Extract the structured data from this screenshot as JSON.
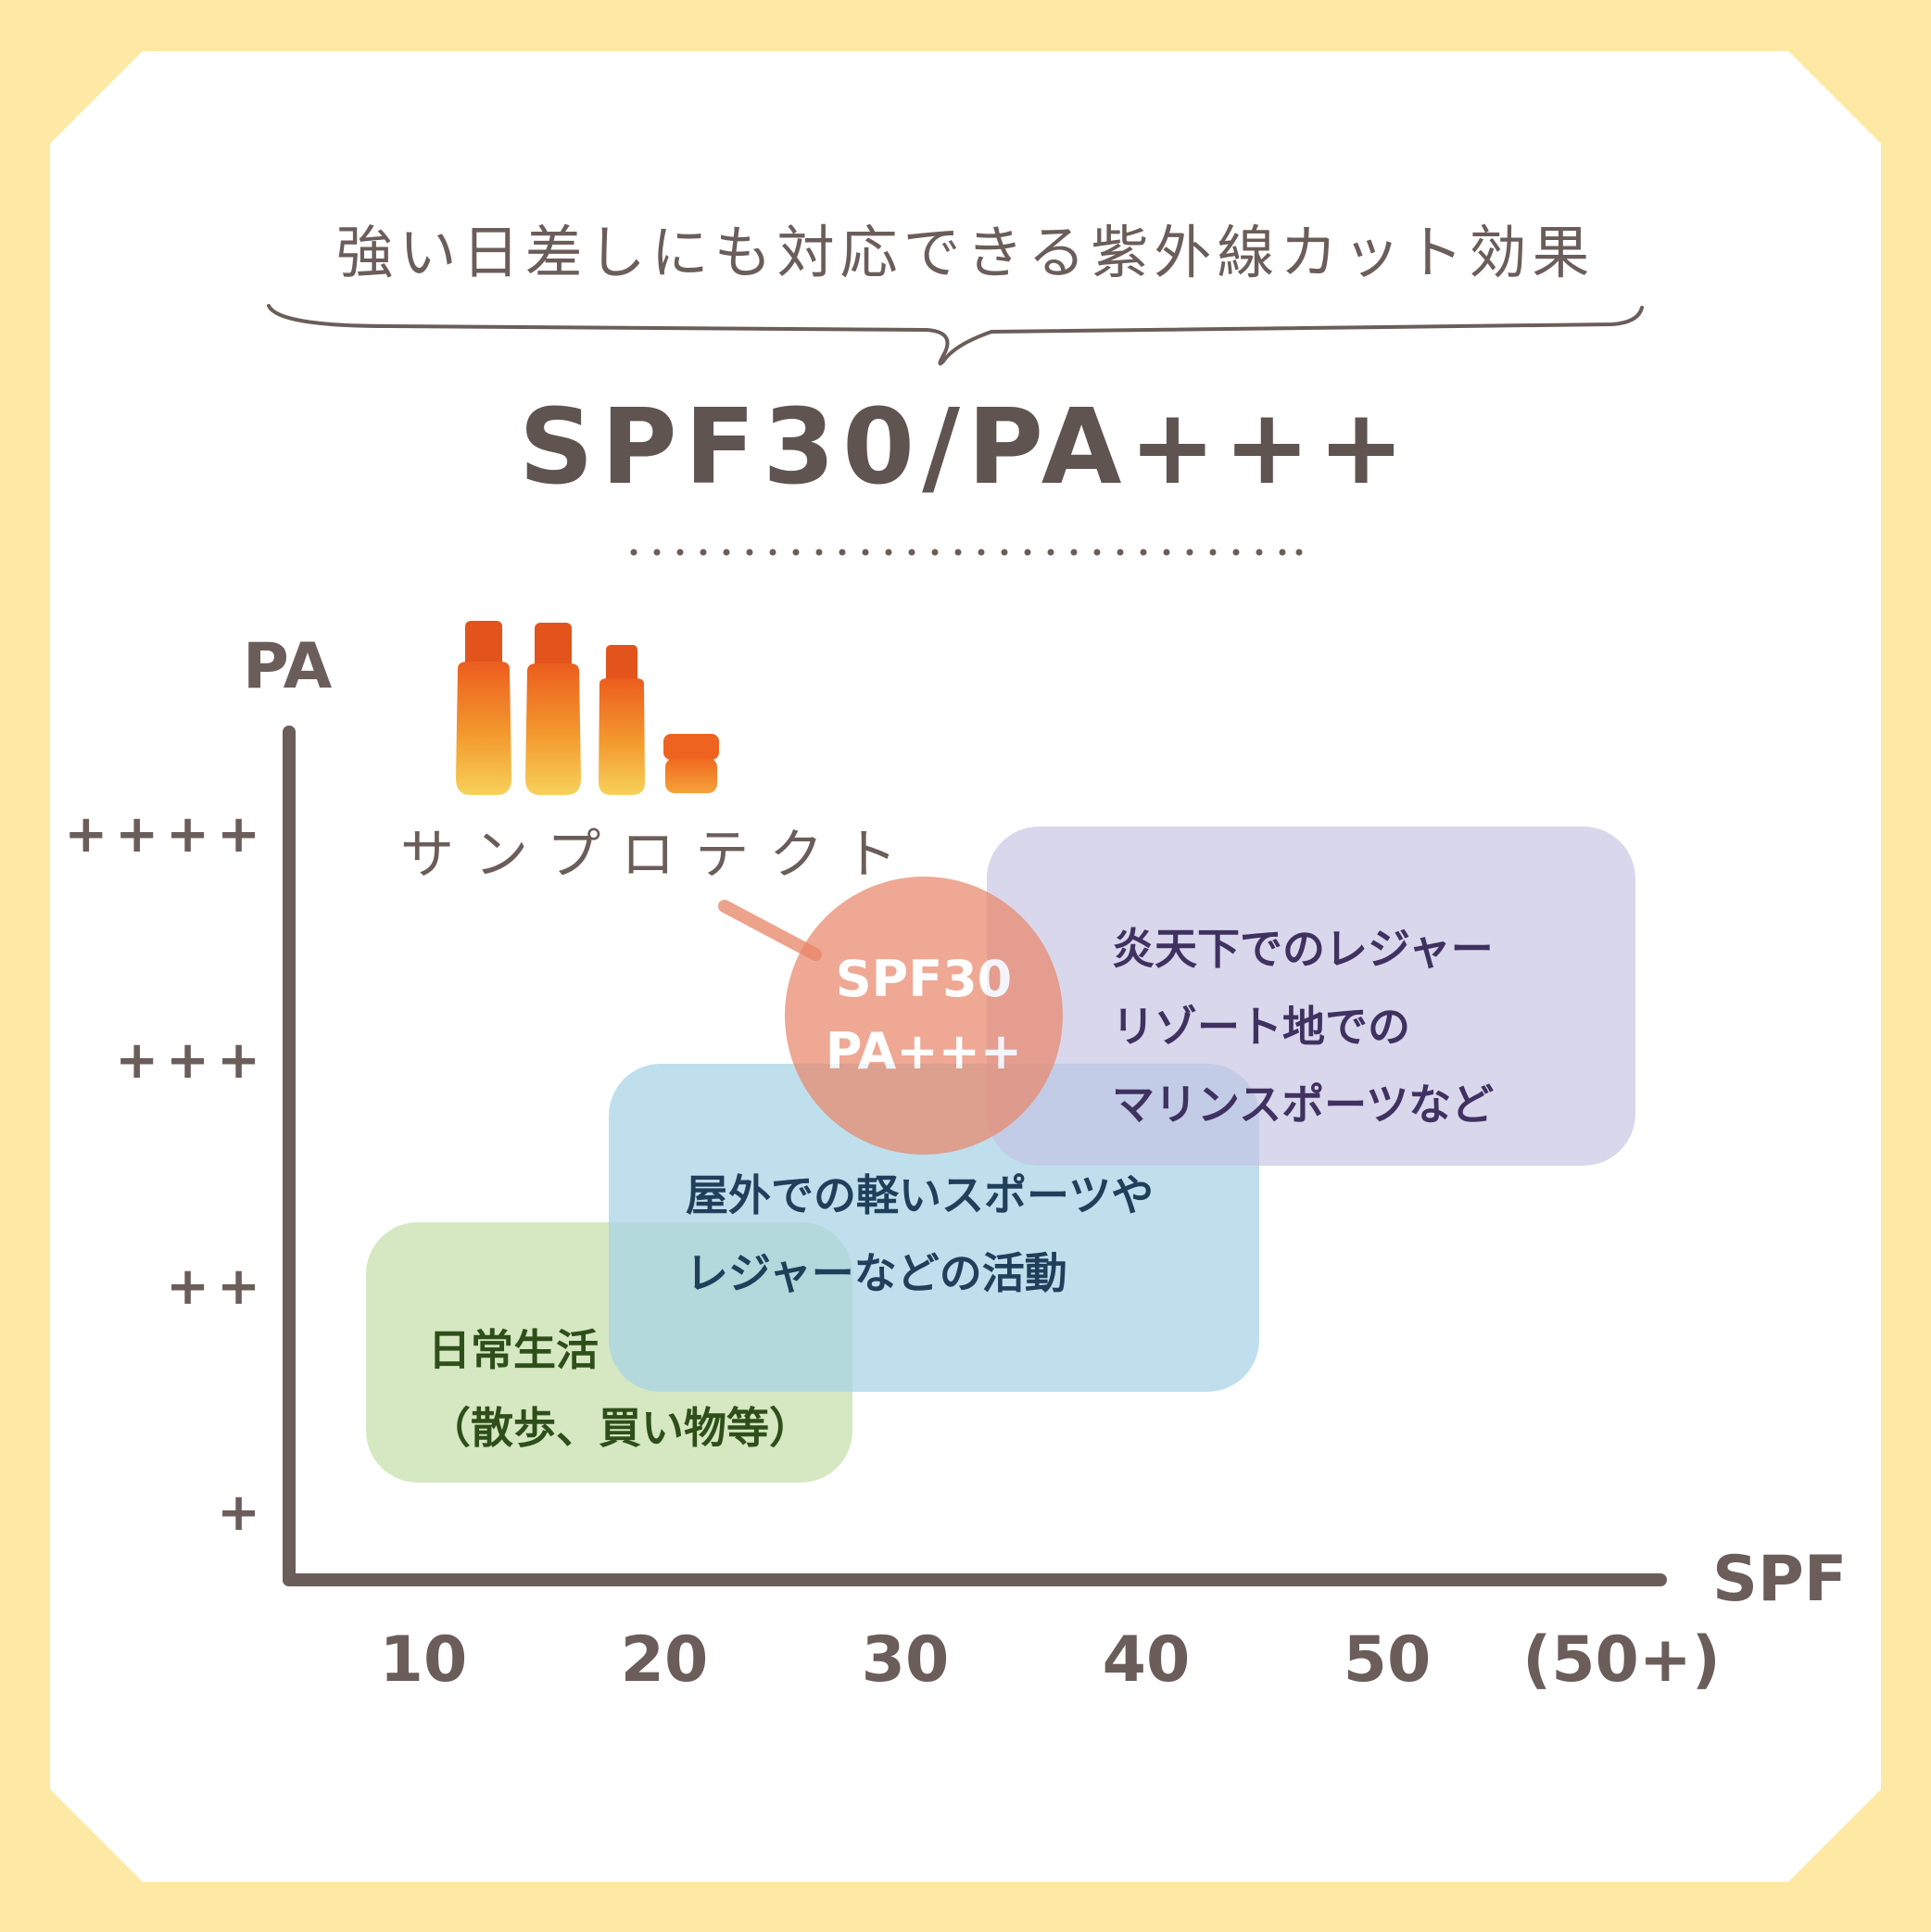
{
  "subtitle": "強い日差しにも対応できる紫外線カット効果",
  "headline": "SPF30/PA+++",
  "product": {
    "name": "サンプロテクト",
    "image_alt": "product-bottles"
  },
  "colors": {
    "background": "#fde8a4",
    "axis": "#6b5d59",
    "zone_daily": "#c7e0ae",
    "zone_outdoor": "#a6d3e6",
    "zone_leisure": "#c4c2e2",
    "bubble": "#e9876a",
    "bottle": "#ee6a22"
  },
  "chart_data": {
    "type": "scatter",
    "xlabel": "SPF",
    "ylabel": "PA",
    "x_ticks": [
      "10",
      "20",
      "30",
      "40",
      "50",
      "(50+)"
    ],
    "y_ticks": [
      "+",
      "++",
      "+++",
      "++++"
    ],
    "zones": [
      {
        "id": "daily",
        "label_lines": [
          "日常生活",
          "（散歩、買い物等）"
        ],
        "spf_range": [
          7.6,
          27.8
        ],
        "pa_range": [
          1.1,
          2.25
        ],
        "text_color": "#2f4f1a"
      },
      {
        "id": "outdoor",
        "label_lines": [
          "屋外での軽いスポーツや",
          "レジャーなどの活動"
        ],
        "spf_range": [
          17.7,
          44.7
        ],
        "pa_range": [
          1.5,
          2.95
        ],
        "text_color": "#1f3f5b"
      },
      {
        "id": "leisure",
        "label_lines": [
          "炎天下でのレジャー",
          "リゾート地での",
          "マリンスポーツなど"
        ],
        "spf_range": [
          33.4,
          60.3
        ],
        "pa_range": [
          2.5,
          4.0
        ],
        "text_color": "#3f3160"
      }
    ],
    "point": {
      "spf": 30,
      "pa": 3,
      "label_lines": [
        "SPF30",
        "PA+++"
      ]
    }
  }
}
